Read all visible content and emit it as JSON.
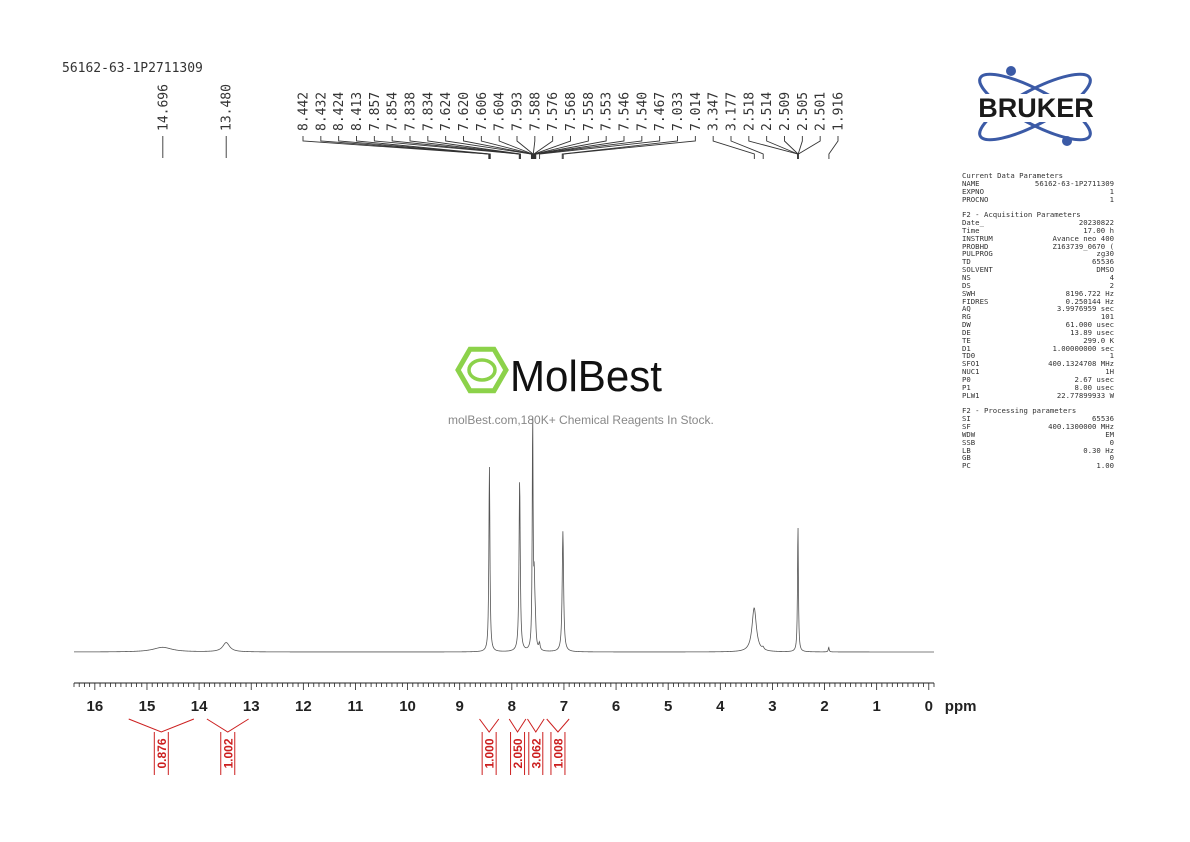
{
  "sample_name": "56162-63-1P2711309",
  "brand": "BRUKER",
  "watermark": {
    "name": "MolBest",
    "tagline": "molBest.com,180K+ Chemical Reagents In Stock."
  },
  "colors": {
    "spectrum": "#555555",
    "integral": "#cc1f1f",
    "bruker_blue": "#3b5aa6",
    "watermark_green": "#8cd24a",
    "text": "#333333"
  },
  "parameters": {
    "current": {
      "title": "Current Data Parameters",
      "rows": [
        {
          "k": "NAME",
          "v": "56162-63-1P2711309"
        },
        {
          "k": "EXPNO",
          "v": "1"
        },
        {
          "k": "PROCNO",
          "v": "1"
        }
      ]
    },
    "acquisition": {
      "title": "F2 - Acquisition Parameters",
      "rows": [
        {
          "k": "Date_",
          "v": "20230822"
        },
        {
          "k": "Time",
          "v": "17.00 h"
        },
        {
          "k": "INSTRUM",
          "v": "Avance neo 400"
        },
        {
          "k": "PROBHD",
          "v": "Z163739_0670 ("
        },
        {
          "k": "PULPROG",
          "v": "zg30"
        },
        {
          "k": "TD",
          "v": "65536"
        },
        {
          "k": "SOLVENT",
          "v": "DMSO"
        },
        {
          "k": "NS",
          "v": "4"
        },
        {
          "k": "DS",
          "v": "2"
        },
        {
          "k": "SWH",
          "v": "8196.722 Hz"
        },
        {
          "k": "FIDRES",
          "v": "0.250144 Hz"
        },
        {
          "k": "AQ",
          "v": "3.9976959 sec"
        },
        {
          "k": "RG",
          "v": "101"
        },
        {
          "k": "DW",
          "v": "61.000 usec"
        },
        {
          "k": "DE",
          "v": "13.89 usec"
        },
        {
          "k": "TE",
          "v": "299.0 K"
        },
        {
          "k": "D1",
          "v": "1.00000000 sec"
        },
        {
          "k": "TD0",
          "v": "1"
        },
        {
          "k": "SFO1",
          "v": "400.1324708 MHz"
        },
        {
          "k": "NUC1",
          "v": "1H"
        },
        {
          "k": "P0",
          "v": "2.67 usec"
        },
        {
          "k": "P1",
          "v": "8.00 usec"
        },
        {
          "k": "PLW1",
          "v": "22.77899933 W"
        }
      ]
    },
    "processing": {
      "title": "F2 - Processing parameters",
      "rows": [
        {
          "k": "SI",
          "v": "65536"
        },
        {
          "k": "SF",
          "v": "400.1300000 MHz"
        },
        {
          "k": "WDW",
          "v": "EM"
        },
        {
          "k": "SSB",
          "v": "0"
        },
        {
          "k": "LB",
          "v": "0.30 Hz"
        },
        {
          "k": "GB",
          "v": "0"
        },
        {
          "k": "PC",
          "v": "1.00"
        }
      ]
    }
  },
  "chart_data": {
    "type": "line",
    "xlabel": "ppm",
    "xlim": [
      16.4,
      -0.1
    ],
    "x_reversed": true,
    "major_ticks": [
      16,
      15,
      14,
      13,
      12,
      11,
      10,
      9,
      8,
      7,
      6,
      5,
      4,
      3,
      2,
      1,
      0
    ],
    "tick_labels": [
      "16",
      "15",
      "14",
      "13",
      "12",
      "11",
      "10",
      "9",
      "8",
      "7",
      "6",
      "5",
      "4",
      "3",
      "2",
      "1",
      "0"
    ],
    "peak_labels": [
      "14.696",
      "13.480",
      "8.442",
      "8.432",
      "8.424",
      "8.413",
      "7.857",
      "7.854",
      "7.838",
      "7.834",
      "7.624",
      "7.620",
      "7.606",
      "7.604",
      "7.593",
      "7.588",
      "7.576",
      "7.568",
      "7.558",
      "7.553",
      "7.546",
      "7.540",
      "7.467",
      "7.033",
      "7.014",
      "3.347",
      "3.177",
      "2.518",
      "2.514",
      "2.509",
      "2.505",
      "2.501",
      "1.916"
    ],
    "peaks": [
      {
        "ppm": 14.7,
        "height": 0.02,
        "width": 0.22
      },
      {
        "ppm": 13.48,
        "height": 0.04,
        "width": 0.08
      },
      {
        "ppm": 8.43,
        "height": 0.8,
        "width": 0.012
      },
      {
        "ppm": 7.85,
        "height": 0.74,
        "width": 0.014
      },
      {
        "ppm": 7.6,
        "height": 1.0,
        "width": 0.01
      },
      {
        "ppm": 7.57,
        "height": 0.25,
        "width": 0.012
      },
      {
        "ppm": 7.55,
        "height": 0.1,
        "width": 0.015
      },
      {
        "ppm": 7.47,
        "height": 0.03,
        "width": 0.015
      },
      {
        "ppm": 7.02,
        "height": 0.52,
        "width": 0.016
      },
      {
        "ppm": 3.35,
        "height": 0.19,
        "width": 0.05
      },
      {
        "ppm": 3.18,
        "height": 0.01,
        "width": 0.02
      },
      {
        "ppm": 2.51,
        "height": 0.55,
        "width": 0.01
      },
      {
        "ppm": 1.92,
        "height": 0.02,
        "width": 0.01
      }
    ],
    "integrals": [
      {
        "from": 15.35,
        "to": 14.1,
        "value": "0.876"
      },
      {
        "from": 13.85,
        "to": 13.05,
        "value": "1.002"
      },
      {
        "from": 8.62,
        "to": 8.25,
        "value": "1.000"
      },
      {
        "from": 8.05,
        "to": 7.73,
        "value": "2.050"
      },
      {
        "from": 7.7,
        "to": 7.38,
        "value": "3.062"
      },
      {
        "from": 7.33,
        "to": 6.9,
        "value": "1.008"
      }
    ]
  }
}
